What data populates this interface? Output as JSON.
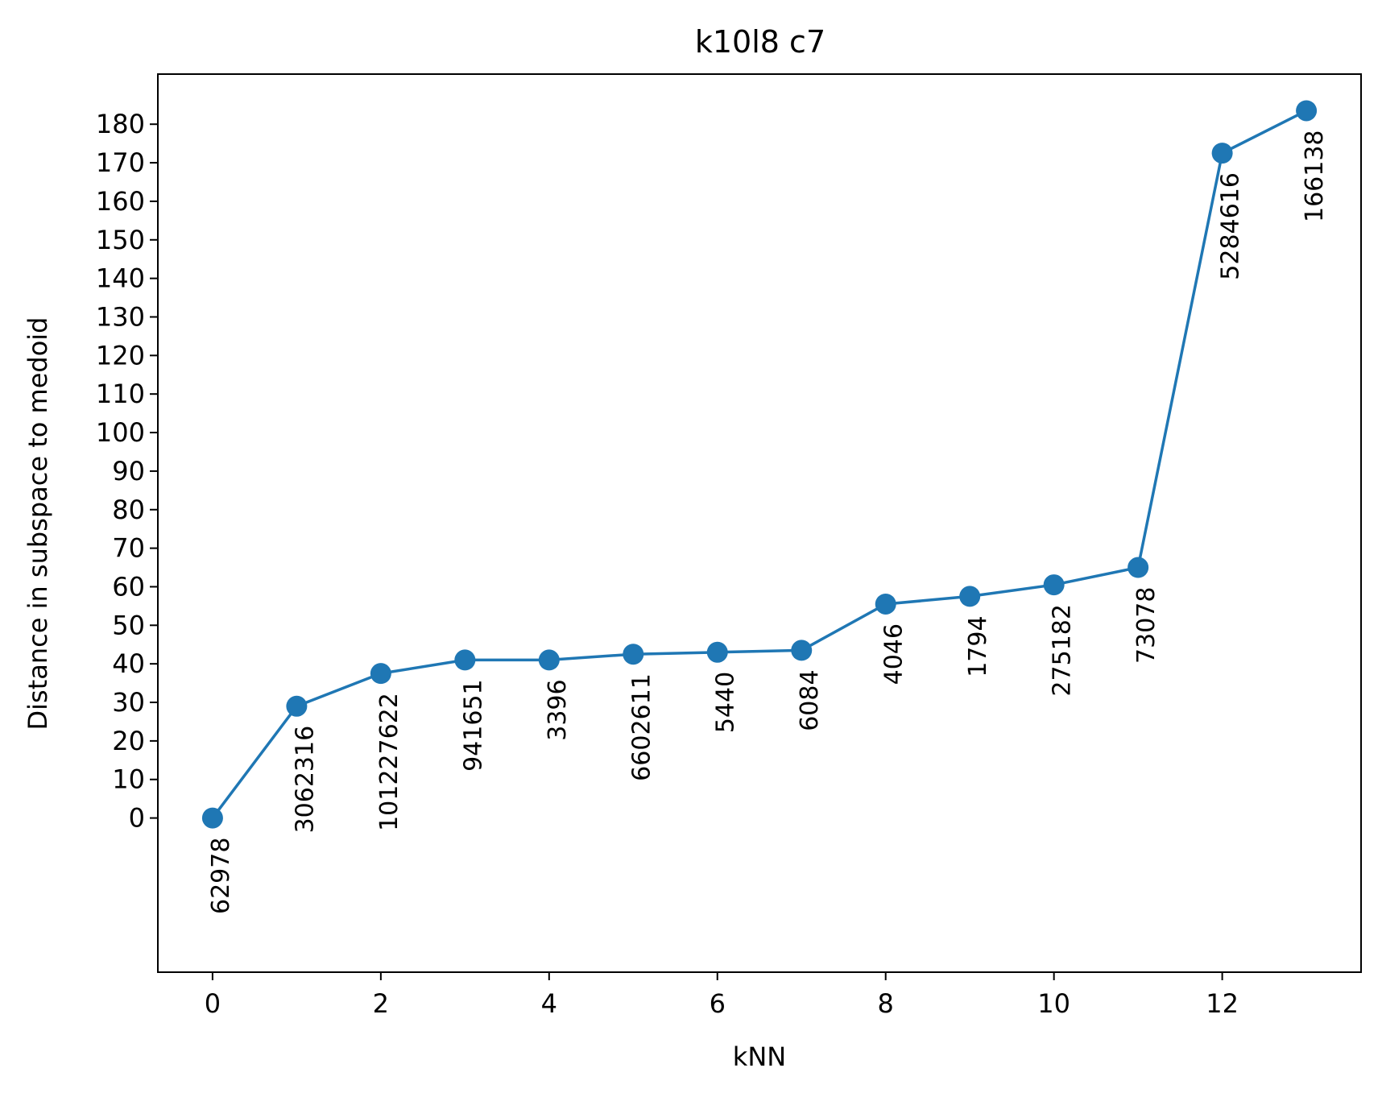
{
  "chart_data": {
    "type": "line",
    "title": "k10l8 c7",
    "xlabel": "kNN",
    "ylabel": "Distance in subspace to medoid",
    "x": [
      0,
      1,
      2,
      3,
      4,
      5,
      6,
      7,
      8,
      9,
      10,
      11,
      12,
      13
    ],
    "series": [
      {
        "values": [
          0,
          29,
          37.5,
          41,
          41,
          42.5,
          43,
          43.5,
          55.5,
          57.5,
          60.5,
          65,
          172.5,
          183.5
        ]
      }
    ],
    "point_labels": [
      "62978",
      "3062316",
      "101227622",
      "941651",
      "3396",
      "6602611",
      "5440",
      "6084",
      "4046",
      "1794",
      "275182",
      "73078",
      "5284616",
      "166138"
    ],
    "x_ticks": [
      "0",
      "2",
      "4",
      "6",
      "8",
      "10",
      "12"
    ],
    "y_ticks": [
      "0",
      "10",
      "20",
      "30",
      "40",
      "50",
      "60",
      "70",
      "80",
      "90",
      "100",
      "110",
      "120",
      "130",
      "140",
      "150",
      "160",
      "170",
      "180"
    ],
    "xlim": [
      -0.65,
      13.65
    ],
    "ylim": [
      -40,
      193
    ],
    "grid": false,
    "colors": {
      "series": "#1f77b4",
      "axes": "#000000"
    }
  }
}
